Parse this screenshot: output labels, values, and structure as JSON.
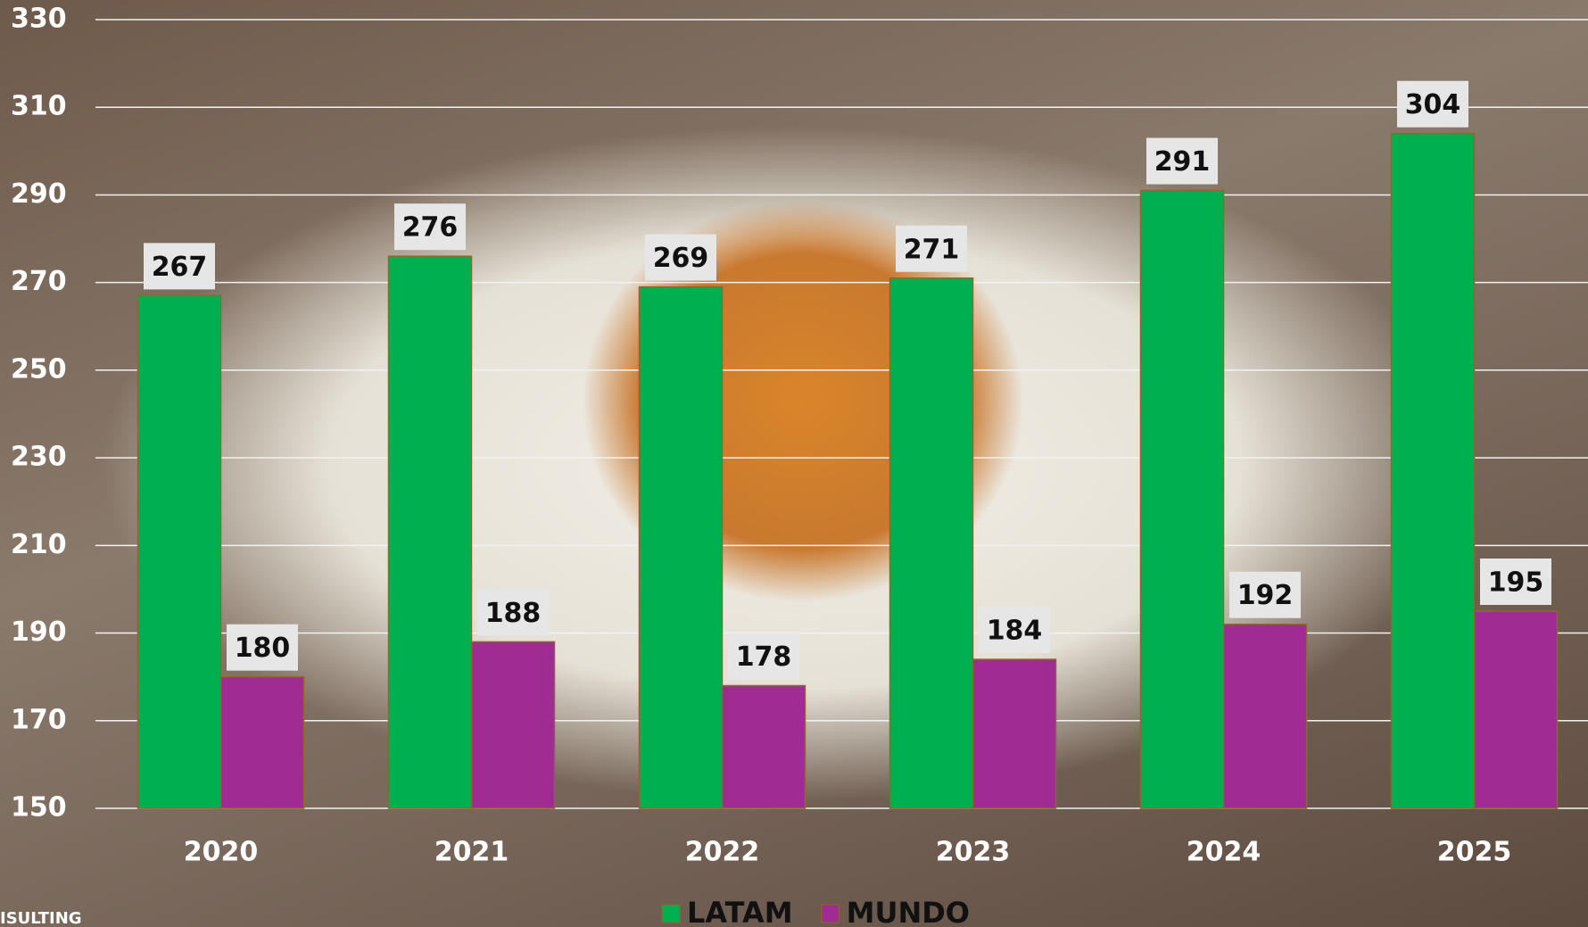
{
  "chart_data": {
    "type": "bar",
    "categories": [
      "2020",
      "2021",
      "2022",
      "2023",
      "2024",
      "2025"
    ],
    "series": [
      {
        "name": "LATAM",
        "color": "#00b050",
        "values": [
          267,
          276,
          269,
          271,
          291,
          304
        ]
      },
      {
        "name": "MUNDO",
        "color": "#a02b93",
        "values": [
          180,
          188,
          178,
          184,
          192,
          195
        ]
      }
    ],
    "ylim": [
      150,
      330
    ],
    "yticks": [
      150,
      170,
      190,
      210,
      230,
      250,
      270,
      290,
      310,
      330
    ],
    "grid": true,
    "legend": "bottom",
    "source": "ISULTING"
  }
}
